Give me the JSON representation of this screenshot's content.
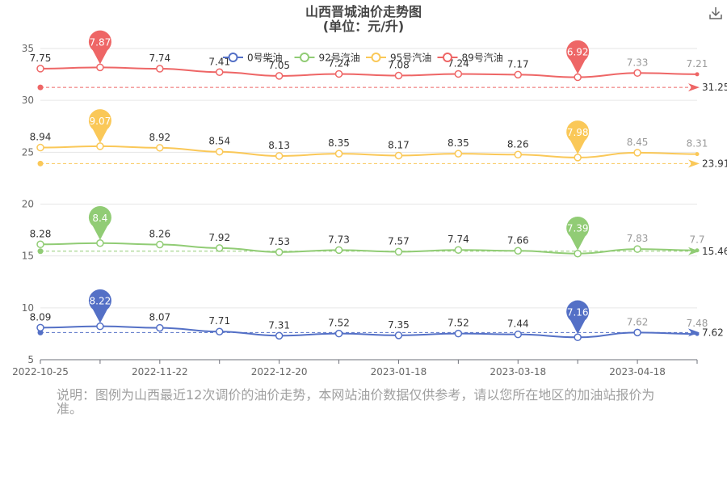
{
  "note": "说明：图例为山西最近12次调价的油价走势，本网站油价数据仅供参考，请以您所在地区的加油站报价为准。",
  "chart_data": {
    "type": "line",
    "title": "山西晋城油价走势图",
    "subtitle": "(单位：元/升)",
    "x_tick_labels": [
      "2022-10-25",
      "2022-11-22",
      "2022-12-20",
      "2023-01-18",
      "2023-03-18",
      "2023-04-18"
    ],
    "y_ticks": [
      5,
      10,
      15,
      20,
      25,
      30,
      35
    ],
    "ylim": [
      5,
      35
    ],
    "legend_position": "top",
    "series": [
      {
        "name": "0号柴油",
        "color": "#5470c6",
        "offset": 0,
        "values": [
          8.09,
          8.22,
          8.07,
          7.71,
          7.31,
          7.52,
          7.35,
          7.52,
          7.44,
          7.16,
          7.62,
          7.48
        ],
        "max_label": "8.22",
        "min_label": "7.16",
        "average": 7.62,
        "average_label": "7.62"
      },
      {
        "name": "92号汽油",
        "color": "#91cc75",
        "offset": 7.84,
        "values": [
          8.28,
          8.4,
          8.26,
          7.92,
          7.53,
          7.73,
          7.57,
          7.74,
          7.66,
          7.39,
          7.83,
          7.7
        ],
        "max_label": "8.4",
        "min_label": "7.39",
        "average": 15.46,
        "average_label": "15.46"
      },
      {
        "name": "95号汽油",
        "color": "#fac858",
        "offset": 16.51,
        "values": [
          8.94,
          9.07,
          8.92,
          8.54,
          8.13,
          8.35,
          8.17,
          8.35,
          8.26,
          7.98,
          8.45,
          8.31
        ],
        "max_label": "9.07",
        "min_label": "7.98",
        "average": 23.91,
        "average_label": "23.91"
      },
      {
        "name": "89号汽油",
        "color": "#ee6666",
        "offset": 25.31,
        "values": [
          7.75,
          7.87,
          7.74,
          7.41,
          7.05,
          7.24,
          7.08,
          7.24,
          7.17,
          6.92,
          7.33,
          7.21
        ],
        "max_label": "7.87",
        "min_label": "6.92",
        "average": 31.25,
        "average_label": "31.25"
      }
    ]
  }
}
